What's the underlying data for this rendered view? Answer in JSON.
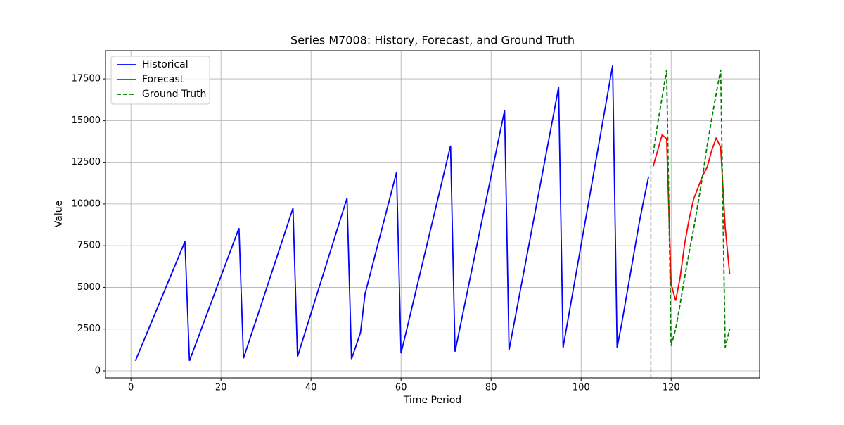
{
  "chart_data": {
    "type": "line",
    "title": "Series M7008: History, Forecast, and Ground Truth",
    "x_label": "Time Period",
    "y_label": "Value",
    "xlim": [
      -5.65,
      139.65
    ],
    "ylim": [
      -422,
      19190
    ],
    "xticks": [
      0,
      20,
      40,
      60,
      80,
      100,
      120
    ],
    "yticks": [
      0,
      2500,
      5000,
      7500,
      10000,
      12500,
      15000,
      17500
    ],
    "grid": true,
    "legend": "upper left",
    "vline": 115.5,
    "vline_color": "#808080",
    "series": [
      {
        "name": "Historical",
        "color": "#0000ff",
        "dash": "solid",
        "x": [
          1,
          2,
          3,
          4,
          5,
          6,
          7,
          8,
          9,
          10,
          11,
          12,
          13,
          14,
          15,
          16,
          17,
          18,
          19,
          20,
          21,
          22,
          23,
          24,
          25,
          26,
          27,
          28,
          29,
          30,
          31,
          32,
          33,
          34,
          35,
          36,
          37,
          38,
          39,
          40,
          41,
          42,
          43,
          44,
          45,
          46,
          47,
          48,
          49,
          50,
          51,
          52,
          53,
          54,
          55,
          56,
          57,
          58,
          59,
          60,
          61,
          62,
          63,
          64,
          65,
          66,
          67,
          68,
          69,
          70,
          71,
          72,
          73,
          74,
          75,
          76,
          77,
          78,
          79,
          80,
          81,
          82,
          83,
          84,
          85,
          86,
          87,
          88,
          89,
          90,
          91,
          92,
          93,
          94,
          95,
          96,
          97,
          98,
          99,
          100,
          101,
          102,
          103,
          104,
          105,
          106,
          107,
          108,
          109,
          110,
          111,
          112,
          113,
          114,
          115
        ],
        "values": [
          600,
          1250,
          1900,
          2550,
          3200,
          3850,
          4500,
          5150,
          5800,
          6450,
          7100,
          7750,
          600,
          1320,
          2040,
          2770,
          3490,
          4210,
          4940,
          5660,
          6380,
          7110,
          7830,
          8550,
          750,
          1570,
          2390,
          3200,
          4020,
          4840,
          5660,
          6480,
          7300,
          8110,
          8930,
          9750,
          850,
          1710,
          2580,
          3440,
          4310,
          5170,
          6030,
          6900,
          7760,
          8630,
          9490,
          10350,
          700,
          1500,
          2300,
          4600,
          5640,
          6690,
          7730,
          8770,
          9810,
          10860,
          11900,
          1050,
          2180,
          3310,
          4450,
          5580,
          6710,
          7840,
          8970,
          10100,
          11240,
          12370,
          13500,
          1150,
          2470,
          3780,
          5100,
          6410,
          7730,
          9040,
          10360,
          11670,
          12990,
          14300,
          15600,
          1250,
          2680,
          4110,
          5540,
          6960,
          8390,
          9820,
          11250,
          12680,
          14110,
          15540,
          17000,
          1400,
          2940,
          4470,
          6010,
          7550,
          9080,
          10620,
          12160,
          13690,
          15230,
          16760,
          18300,
          1400,
          2800,
          4350,
          5900,
          7450,
          9000,
          10350,
          11650
        ]
      },
      {
        "name": "Forecast",
        "color": "#ff0000",
        "dash": "solid",
        "x": [
          116,
          117,
          118,
          119,
          120,
          121,
          122,
          123,
          124,
          125,
          126,
          127,
          128,
          129,
          130,
          131,
          132,
          133
        ],
        "values": [
          12250,
          13200,
          14150,
          13900,
          5200,
          4200,
          5600,
          7600,
          9100,
          10300,
          11000,
          11700,
          12200,
          13200,
          13950,
          13400,
          8600,
          5800
        ]
      },
      {
        "name": "Ground Truth",
        "color": "#008000",
        "dash": "dashed",
        "x": [
          116,
          117,
          118,
          119,
          120,
          121,
          122,
          123,
          124,
          125,
          126,
          127,
          128,
          129,
          130,
          131,
          132,
          133
        ],
        "values": [
          13000,
          14800,
          16400,
          18050,
          1500,
          2500,
          4000,
          5600,
          7100,
          8500,
          10100,
          11700,
          13500,
          15100,
          16600,
          18050,
          1400,
          2500
        ]
      }
    ]
  }
}
